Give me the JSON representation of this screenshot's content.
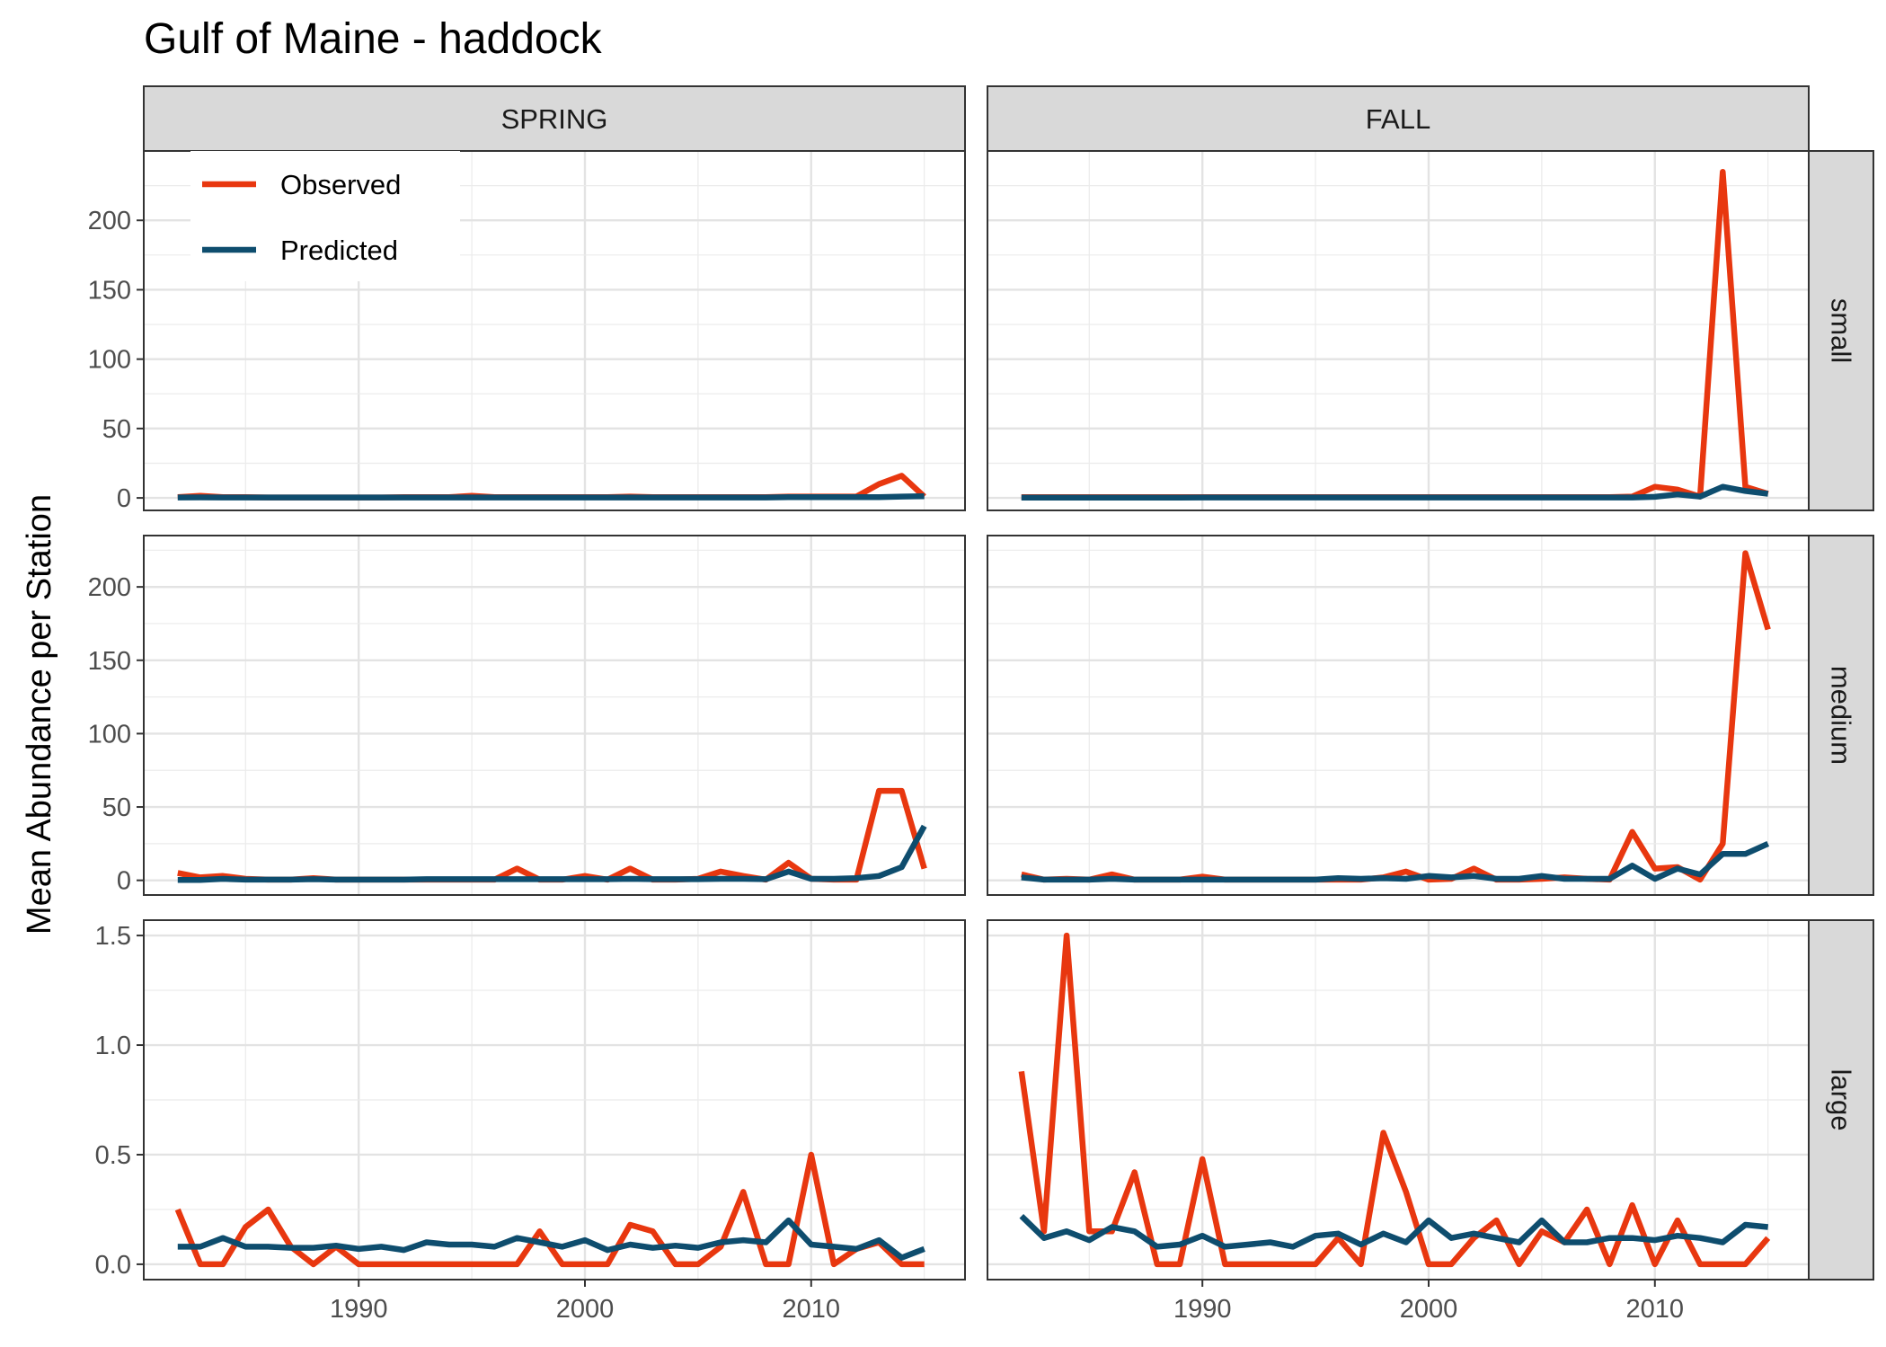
{
  "chart_data": {
    "type": "line",
    "title": "Gulf of Maine - haddock",
    "xlabel": "",
    "ylabel": "Mean Abundance per Station",
    "columns": [
      "SPRING",
      "FALL"
    ],
    "rows": [
      "small",
      "medium",
      "large"
    ],
    "x": [
      1982,
      1983,
      1984,
      1985,
      1986,
      1987,
      1988,
      1989,
      1990,
      1991,
      1992,
      1993,
      1994,
      1995,
      1996,
      1997,
      1998,
      1999,
      2000,
      2001,
      2002,
      2003,
      2004,
      2005,
      2006,
      2007,
      2008,
      2009,
      2010,
      2011,
      2012,
      2013,
      2014,
      2015
    ],
    "xlim": [
      1980.5,
      2016.8
    ],
    "x_ticks": [
      1990,
      2000,
      2010
    ],
    "grid": true,
    "legend": {
      "position": "top-left",
      "entries": [
        {
          "name": "Observed",
          "color": "#e8370f"
        },
        {
          "name": "Predicted",
          "color": "#0e4d6e"
        }
      ]
    },
    "rows_meta": [
      {
        "name": "small",
        "ylim": [
          -9,
          250
        ],
        "y_ticks": [
          0,
          50,
          100,
          150,
          200
        ]
      },
      {
        "name": "medium",
        "ylim": [
          -10,
          235
        ],
        "y_ticks": [
          0,
          50,
          100,
          150,
          200
        ]
      },
      {
        "name": "large",
        "ylim": [
          -0.07,
          1.57
        ],
        "y_ticks": [
          0.0,
          0.5,
          1.0,
          1.5
        ]
      }
    ],
    "panels": [
      {
        "column": "SPRING",
        "row": "small",
        "series": [
          {
            "name": "Observed",
            "values": [
              0.5,
              1.5,
              0.5,
              0.5,
              0.3,
              0.3,
              0.3,
              0.3,
              0.3,
              0.3,
              0.5,
              0.5,
              0.5,
              1.5,
              0.5,
              0.5,
              0.5,
              0.5,
              0.5,
              0.5,
              1.0,
              0.5,
              0.5,
              0.5,
              0.5,
              0.5,
              0.5,
              1.0,
              1.0,
              1.0,
              1.0,
              10.0,
              16.0,
              1.0
            ]
          },
          {
            "name": "Predicted",
            "values": [
              0.3,
              0.4,
              0.3,
              0.3,
              0.3,
              0.3,
              0.3,
              0.3,
              0.3,
              0.3,
              0.3,
              0.3,
              0.3,
              0.3,
              0.3,
              0.3,
              0.3,
              0.3,
              0.3,
              0.3,
              0.3,
              0.3,
              0.3,
              0.3,
              0.3,
              0.3,
              0.3,
              0.6,
              0.6,
              0.6,
              0.6,
              0.6,
              1.0,
              1.2
            ]
          }
        ]
      },
      {
        "column": "FALL",
        "row": "small",
        "series": [
          {
            "name": "Observed",
            "values": [
              0.5,
              0.5,
              0.5,
              0.5,
              0.5,
              0.5,
              0.5,
              0.5,
              0.5,
              0.5,
              0.5,
              0.5,
              0.5,
              0.5,
              0.5,
              0.5,
              0.5,
              0.5,
              0.5,
              0.5,
              0.5,
              0.5,
              0.5,
              0.5,
              0.5,
              0.5,
              0.5,
              1.0,
              8.0,
              6.0,
              1.0,
              235.0,
              8.0,
              3.0
            ]
          },
          {
            "name": "Predicted",
            "values": [
              0.2,
              0.2,
              0.2,
              0.2,
              0.2,
              0.2,
              0.2,
              0.2,
              0.3,
              0.3,
              0.3,
              0.3,
              0.3,
              0.3,
              0.3,
              0.3,
              0.3,
              0.3,
              0.3,
              0.3,
              0.3,
              0.3,
              0.3,
              0.3,
              0.3,
              0.3,
              0.3,
              0.3,
              0.8,
              2.5,
              1.0,
              8.0,
              5.0,
              3.0
            ]
          }
        ]
      },
      {
        "column": "SPRING",
        "row": "medium",
        "series": [
          {
            "name": "Observed",
            "values": [
              5.0,
              2.0,
              3.0,
              1.0,
              0.5,
              0.5,
              1.5,
              0.5,
              0.5,
              0.5,
              0.5,
              0.5,
              0.5,
              0.5,
              0.5,
              8.0,
              0.5,
              0.5,
              3.0,
              0.5,
              8.0,
              0.5,
              0.5,
              1.0,
              6.0,
              3.0,
              0.5,
              12.0,
              1.0,
              0.5,
              0.5,
              61.0,
              61.0,
              8.0
            ]
          },
          {
            "name": "Predicted",
            "values": [
              0.3,
              0.3,
              1.0,
              0.5,
              0.5,
              0.5,
              0.8,
              0.5,
              0.5,
              0.5,
              0.5,
              0.8,
              0.8,
              0.8,
              0.8,
              0.8,
              0.8,
              0.8,
              0.8,
              0.8,
              1.0,
              0.8,
              0.8,
              0.8,
              1.0,
              1.0,
              0.8,
              6.0,
              1.0,
              1.0,
              1.5,
              3.0,
              9.0,
              37.0
            ]
          }
        ]
      },
      {
        "column": "FALL",
        "row": "medium",
        "series": [
          {
            "name": "Observed",
            "values": [
              4.0,
              0.5,
              1.0,
              0.5,
              4.0,
              0.5,
              0.5,
              0.5,
              2.5,
              0.5,
              0.5,
              0.5,
              0.5,
              0.5,
              0.5,
              0.5,
              2.0,
              6.0,
              0.5,
              1.0,
              8.0,
              0.5,
              0.5,
              1.0,
              2.0,
              1.0,
              0.5,
              33.0,
              8.0,
              9.0,
              0.5,
              25.0,
              223.0,
              171.0
            ]
          },
          {
            "name": "Predicted",
            "values": [
              2.0,
              0.5,
              0.5,
              0.5,
              1.0,
              0.5,
              0.5,
              0.5,
              0.5,
              0.5,
              0.5,
              0.5,
              0.5,
              0.5,
              1.5,
              1.0,
              1.5,
              1.0,
              3.0,
              2.0,
              3.0,
              1.0,
              1.0,
              3.0,
              1.0,
              1.0,
              1.0,
              10.0,
              1.0,
              8.0,
              4.0,
              18.0,
              18.0,
              25.0
            ]
          }
        ]
      },
      {
        "column": "SPRING",
        "row": "large",
        "series": [
          {
            "name": "Observed",
            "values": [
              0.25,
              0.0,
              0.0,
              0.17,
              0.25,
              0.08,
              0.0,
              0.08,
              0.0,
              0.0,
              0.0,
              0.0,
              0.0,
              0.0,
              0.0,
              0.0,
              0.15,
              0.0,
              0.0,
              0.0,
              0.18,
              0.15,
              0.0,
              0.0,
              0.08,
              0.33,
              0.0,
              0.0,
              0.5,
              0.0,
              0.07,
              0.1,
              0.0,
              0.0
            ]
          },
          {
            "name": "Predicted",
            "values": [
              0.08,
              0.08,
              0.12,
              0.08,
              0.08,
              0.075,
              0.075,
              0.085,
              0.07,
              0.08,
              0.065,
              0.1,
              0.09,
              0.09,
              0.08,
              0.12,
              0.1,
              0.08,
              0.11,
              0.065,
              0.09,
              0.075,
              0.085,
              0.075,
              0.1,
              0.11,
              0.1,
              0.2,
              0.09,
              0.08,
              0.07,
              0.11,
              0.03,
              0.07
            ]
          }
        ]
      },
      {
        "column": "FALL",
        "row": "large",
        "series": [
          {
            "name": "Observed",
            "values": [
              0.88,
              0.15,
              1.5,
              0.15,
              0.15,
              0.42,
              0.0,
              0.0,
              0.48,
              0.0,
              0.0,
              0.0,
              0.0,
              0.0,
              0.12,
              0.0,
              0.6,
              0.33,
              0.0,
              0.0,
              0.12,
              0.2,
              0.0,
              0.15,
              0.1,
              0.25,
              0.0,
              0.27,
              0.0,
              0.2,
              0.0,
              0.0,
              0.0,
              0.12
            ]
          },
          {
            "name": "Predicted",
            "values": [
              0.22,
              0.12,
              0.15,
              0.11,
              0.17,
              0.15,
              0.08,
              0.09,
              0.13,
              0.08,
              0.09,
              0.1,
              0.08,
              0.13,
              0.14,
              0.09,
              0.14,
              0.1,
              0.2,
              0.12,
              0.14,
              0.12,
              0.1,
              0.2,
              0.1,
              0.1,
              0.12,
              0.12,
              0.11,
              0.13,
              0.12,
              0.1,
              0.18,
              0.17
            ]
          }
        ]
      }
    ]
  }
}
